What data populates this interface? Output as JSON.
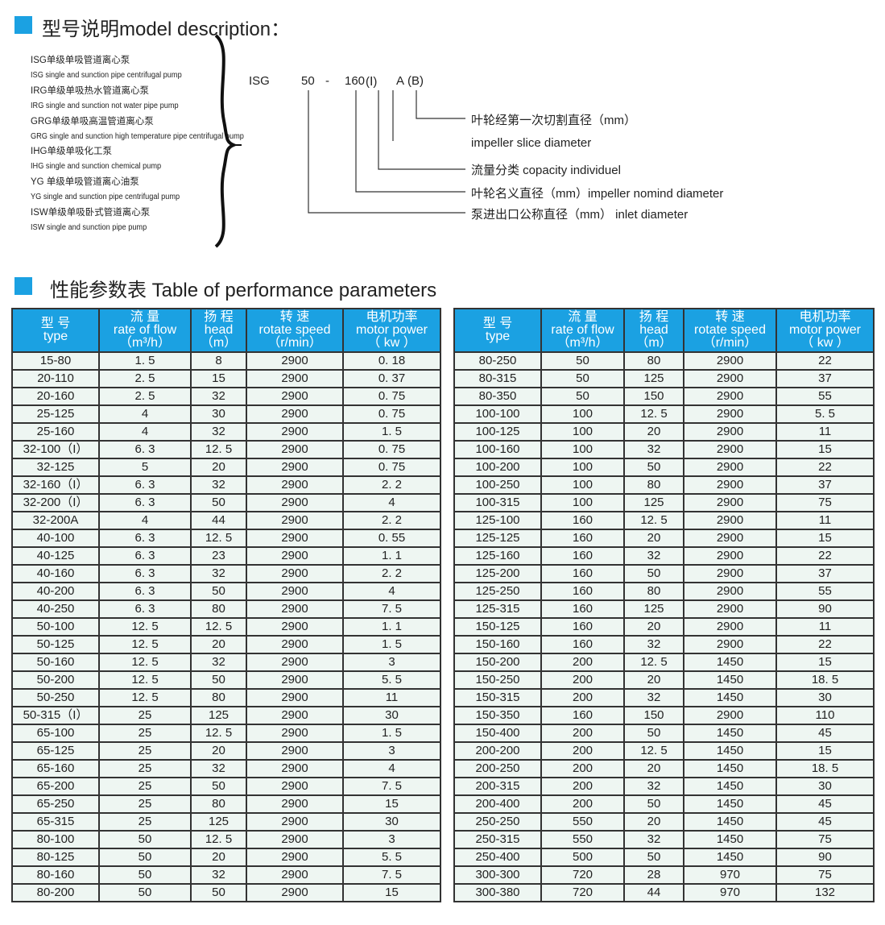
{
  "model": {
    "title": "型号说明model description：",
    "types": [
      "ISG单级单吸管道离心泵",
      "ISG single and sunction pipe centrifugal pump",
      "IRG单级单吸热水管道离心泵",
      "IRG single and sunction not water pipe pump",
      "GRG单级单吸高温管道离心泵",
      "GRG single and sunction high temperature pipe centrifugal pump",
      "IHG单级单吸化工泵",
      "IHG single and sunction chemical pump",
      "YG 单级单吸管道离心油泵",
      "YG  single and sunction pipe centrifugal pump",
      "ISW单级单吸卧式管道离心泵",
      "ISW single and sunction pipe pump"
    ],
    "code": {
      "p1": "ISG",
      "p2": "50",
      "dash": "-",
      "p3": "160",
      "p4": "(Ⅰ)",
      "p5": "A",
      "p6": "(B)"
    },
    "labels": [
      "叶轮经第一次切割直径（mm）",
      "impeller  slice  diameter",
      "流量分类     copacity individuel",
      "叶轮名义直径（mm）impeller nomind diameter",
      "泵进出口公称直径（mm）  inlet  diameter"
    ]
  },
  "table": {
    "title": "性能参数表   Table of performance parameters",
    "headers": [
      [
        "型 号",
        "type",
        ""
      ],
      [
        "流 量",
        "rate of flow",
        "（m³/h）"
      ],
      [
        "扬 程",
        "head",
        "（m）"
      ],
      [
        "转 速",
        "rotate speed",
        "（r/min）"
      ],
      [
        "电机功率",
        "motor power",
        "（ kw ）"
      ]
    ],
    "left": [
      [
        "15-80",
        "1. 5",
        "8",
        "2900",
        "0. 18"
      ],
      [
        "20-110",
        "2. 5",
        "15",
        "2900",
        "0. 37"
      ],
      [
        "20-160",
        "2. 5",
        "32",
        "2900",
        "0. 75"
      ],
      [
        "25-125",
        "4",
        "30",
        "2900",
        "0. 75"
      ],
      [
        "25-160",
        "4",
        "32",
        "2900",
        "1. 5"
      ],
      [
        "32-100（I）",
        "6. 3",
        "12. 5",
        "2900",
        "0. 75"
      ],
      [
        "32-125",
        "5",
        "20",
        "2900",
        "0. 75"
      ],
      [
        "32-160（I）",
        "6. 3",
        "32",
        "2900",
        "2. 2"
      ],
      [
        "32-200（I）",
        "6. 3",
        "50",
        "2900",
        "4"
      ],
      [
        "32-200A",
        "4",
        "44",
        "2900",
        "2. 2"
      ],
      [
        "40-100",
        "6. 3",
        "12. 5",
        "2900",
        "0. 55"
      ],
      [
        "40-125",
        "6. 3",
        "23",
        "2900",
        "1. 1"
      ],
      [
        "40-160",
        "6. 3",
        "32",
        "2900",
        "2. 2"
      ],
      [
        "40-200",
        "6. 3",
        "50",
        "2900",
        "4"
      ],
      [
        "40-250",
        "6. 3",
        "80",
        "2900",
        "7. 5"
      ],
      [
        "50-100",
        "12. 5",
        "12. 5",
        "2900",
        "1. 1"
      ],
      [
        "50-125",
        "12. 5",
        "20",
        "2900",
        "1. 5"
      ],
      [
        "50-160",
        "12. 5",
        "32",
        "2900",
        "3"
      ],
      [
        "50-200",
        "12. 5",
        "50",
        "2900",
        "5. 5"
      ],
      [
        "50-250",
        "12. 5",
        "80",
        "2900",
        "11"
      ],
      [
        "50-315（I）",
        "25",
        "125",
        "2900",
        "30"
      ],
      [
        "65-100",
        "25",
        "12. 5",
        "2900",
        "1. 5"
      ],
      [
        "65-125",
        "25",
        "20",
        "2900",
        "3"
      ],
      [
        "65-160",
        "25",
        "32",
        "2900",
        "4"
      ],
      [
        "65-200",
        "25",
        "50",
        "2900",
        "7. 5"
      ],
      [
        "65-250",
        "25",
        "80",
        "2900",
        "15"
      ],
      [
        "65-315",
        "25",
        "125",
        "2900",
        "30"
      ],
      [
        "80-100",
        "50",
        "12. 5",
        "2900",
        "3"
      ],
      [
        "80-125",
        "50",
        "20",
        "2900",
        "5. 5"
      ],
      [
        "80-160",
        "50",
        "32",
        "2900",
        "7. 5"
      ],
      [
        "80-200",
        "50",
        "50",
        "2900",
        "15"
      ]
    ],
    "right": [
      [
        "80-250",
        "50",
        "80",
        "2900",
        "22"
      ],
      [
        "80-315",
        "50",
        "125",
        "2900",
        "37"
      ],
      [
        "80-350",
        "50",
        "150",
        "2900",
        "55"
      ],
      [
        "100-100",
        "100",
        "12. 5",
        "2900",
        "5. 5"
      ],
      [
        "100-125",
        "100",
        "20",
        "2900",
        "11"
      ],
      [
        "100-160",
        "100",
        "32",
        "2900",
        "15"
      ],
      [
        "100-200",
        "100",
        "50",
        "2900",
        "22"
      ],
      [
        "100-250",
        "100",
        "80",
        "2900",
        "37"
      ],
      [
        "100-315",
        "100",
        "125",
        "2900",
        "75"
      ],
      [
        "125-100",
        "160",
        "12. 5",
        "2900",
        "11"
      ],
      [
        "125-125",
        "160",
        "20",
        "2900",
        "15"
      ],
      [
        "125-160",
        "160",
        "32",
        "2900",
        "22"
      ],
      [
        "125-200",
        "160",
        "50",
        "2900",
        "37"
      ],
      [
        "125-250",
        "160",
        "80",
        "2900",
        "55"
      ],
      [
        "125-315",
        "160",
        "125",
        "2900",
        "90"
      ],
      [
        "150-125",
        "160",
        "20",
        "2900",
        "11"
      ],
      [
        "150-160",
        "160",
        "32",
        "2900",
        "22"
      ],
      [
        "150-200",
        "200",
        "12. 5",
        "1450",
        "15"
      ],
      [
        "150-250",
        "200",
        "20",
        "1450",
        "18. 5"
      ],
      [
        "150-315",
        "200",
        "32",
        "1450",
        "30"
      ],
      [
        "150-350",
        "160",
        "150",
        "2900",
        "110"
      ],
      [
        "150-400",
        "200",
        "50",
        "1450",
        "45"
      ],
      [
        "200-200",
        "200",
        "12. 5",
        "1450",
        "15"
      ],
      [
        "200-250",
        "200",
        "20",
        "1450",
        "18. 5"
      ],
      [
        "200-315",
        "200",
        "32",
        "1450",
        "30"
      ],
      [
        "200-400",
        "200",
        "50",
        "1450",
        "45"
      ],
      [
        "250-250",
        "550",
        "20",
        "1450",
        "45"
      ],
      [
        "250-315",
        "550",
        "32",
        "1450",
        "75"
      ],
      [
        "250-400",
        "500",
        "50",
        "1450",
        "90"
      ],
      [
        "300-300",
        "720",
        "28",
        "970",
        "75"
      ],
      [
        "300-380",
        "720",
        "44",
        "970",
        "132"
      ]
    ]
  }
}
